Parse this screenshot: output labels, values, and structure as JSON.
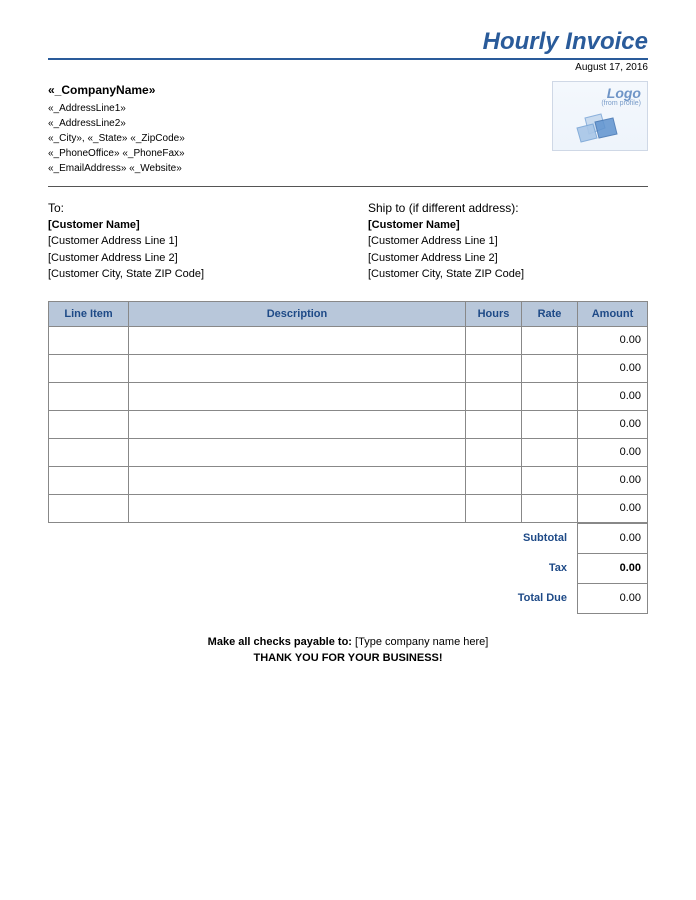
{
  "title": "Hourly Invoice",
  "date": "August 17, 2016",
  "company": {
    "name": "«_CompanyName»",
    "addr1": "«_AddressLine1»",
    "addr2": "«_AddressLine2»",
    "city_line": "«_City», «_State» «_ZipCode»",
    "phone_line": "«_PhoneOffice» «_PhoneFax»",
    "email_line": "«_EmailAddress» «_Website»"
  },
  "logo": {
    "label": "Logo",
    "sub": "(from profile)"
  },
  "to": {
    "label": "To:",
    "name": "[Customer Name]",
    "addr1": "[Customer Address Line 1]",
    "addr2": "[Customer Address Line 2]",
    "city": "[Customer City, State ZIP Code]"
  },
  "ship": {
    "label": "Ship to (if different address):",
    "name": "[Customer Name]",
    "addr1": "[Customer Address Line 1]",
    "addr2": "[Customer Address Line 2]",
    "city": "[Customer City, State ZIP Code]"
  },
  "columns": {
    "line": "Line Item",
    "desc": "Description",
    "hours": "Hours",
    "rate": "Rate",
    "amount": "Amount"
  },
  "rows": [
    {
      "line": "",
      "desc": "",
      "hours": "",
      "rate": "",
      "amount": "0.00"
    },
    {
      "line": "",
      "desc": "",
      "hours": "",
      "rate": "",
      "amount": "0.00"
    },
    {
      "line": "",
      "desc": "",
      "hours": "",
      "rate": "",
      "amount": "0.00"
    },
    {
      "line": "",
      "desc": "",
      "hours": "",
      "rate": "",
      "amount": "0.00"
    },
    {
      "line": "",
      "desc": "",
      "hours": "",
      "rate": "",
      "amount": "0.00"
    },
    {
      "line": "",
      "desc": "",
      "hours": "",
      "rate": "",
      "amount": "0.00"
    },
    {
      "line": "",
      "desc": "",
      "hours": "",
      "rate": "",
      "amount": "0.00"
    }
  ],
  "totals": {
    "subtotal_label": "Subtotal",
    "subtotal": "0.00",
    "tax_label": "Tax",
    "tax": "0.00",
    "due_label": "Total Due",
    "due": "0.00"
  },
  "footer": {
    "payable_label": "Make all checks payable to:",
    "payable_value": "[Type company name here]",
    "thanks": "THANK YOU FOR YOUR BUSINESS!"
  },
  "colors": {
    "accent": "#2a5b9a",
    "header_bg": "#b8c7da",
    "header_text": "#1e4a87",
    "border": "#888888"
  }
}
